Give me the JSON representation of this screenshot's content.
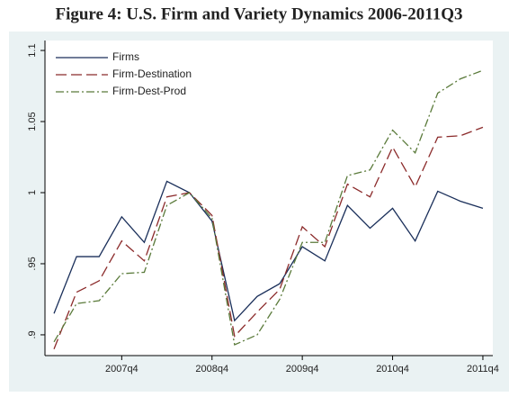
{
  "chart_data": {
    "type": "line",
    "title": "Figure 4: U.S. Firm and Variety Dynamics 2006-2011Q3",
    "x": [
      188,
      189,
      190,
      191,
      192,
      193,
      194,
      195,
      196,
      197,
      198,
      199,
      200,
      201,
      202,
      203,
      204,
      205,
      206,
      207
    ],
    "series": [
      {
        "name": "Firms",
        "color": "#1a2f5a",
        "dash": "none",
        "values": [
          0.915,
          0.955,
          0.955,
          0.983,
          0.965,
          1.008,
          1.0,
          0.98,
          0.91,
          0.927,
          0.936,
          0.962,
          0.952,
          0.991,
          0.975,
          0.989,
          0.966,
          1.001,
          0.994,
          0.989
        ]
      },
      {
        "name": "Firm-Destination",
        "color": "#8b2a2a",
        "dash": "12 5",
        "values": [
          0.89,
          0.93,
          0.938,
          0.966,
          0.952,
          0.997,
          1.0,
          0.984,
          0.899,
          0.916,
          0.932,
          0.976,
          0.962,
          1.006,
          0.997,
          1.032,
          1.004,
          1.039,
          1.04,
          1.046
        ]
      },
      {
        "name": "Firm-Dest-Prod",
        "color": "#5a7a3a",
        "dash": "9 3 2 3",
        "values": [
          0.895,
          0.922,
          0.924,
          0.943,
          0.944,
          0.991,
          1.0,
          0.982,
          0.893,
          0.9,
          0.925,
          0.965,
          0.965,
          1.012,
          1.016,
          1.044,
          1.028,
          1.07,
          1.08,
          1.086
        ]
      }
    ],
    "xlim": [
      187.6,
      207.44
    ],
    "xticks": [
      {
        "value": 191,
        "label": "2007q4"
      },
      {
        "value": 195,
        "label": "2008q4"
      },
      {
        "value": 199,
        "label": "2009q4"
      },
      {
        "value": 203,
        "label": "2010q4"
      },
      {
        "value": 207,
        "label": "2011q4"
      }
    ],
    "ylim": [
      0.8854,
      1.107
    ],
    "yticks": [
      {
        "value": 0.9,
        "label": ".9"
      },
      {
        "value": 0.95,
        "label": ".95"
      },
      1,
      1.05,
      1.1
    ]
  }
}
